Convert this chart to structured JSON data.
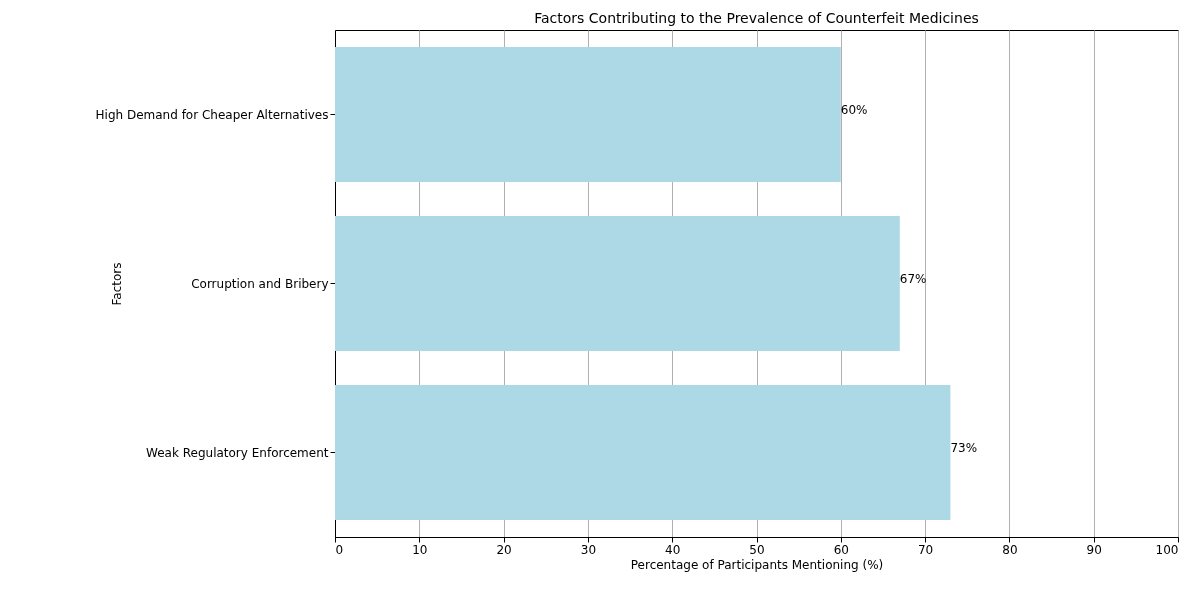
{
  "chart_data": {
    "type": "bar",
    "orientation": "horizontal",
    "title": "Factors Contributing to the Prevalence of Counterfeit Medicines",
    "xlabel": "Percentage of Participants Mentioning (%)",
    "ylabel": "Factors",
    "categories": [
      "High Demand for Cheaper Alternatives",
      "Corruption and Bribery",
      "Weak Regulatory Enforcement"
    ],
    "values": [
      60,
      67,
      73
    ],
    "value_labels": [
      "60%",
      "67%",
      "73%"
    ],
    "color": "#add8e6",
    "xlim": [
      0,
      100
    ],
    "xticks": [
      0,
      10,
      20,
      30,
      40,
      50,
      60,
      70,
      80,
      90,
      100
    ],
    "grid": "x"
  }
}
